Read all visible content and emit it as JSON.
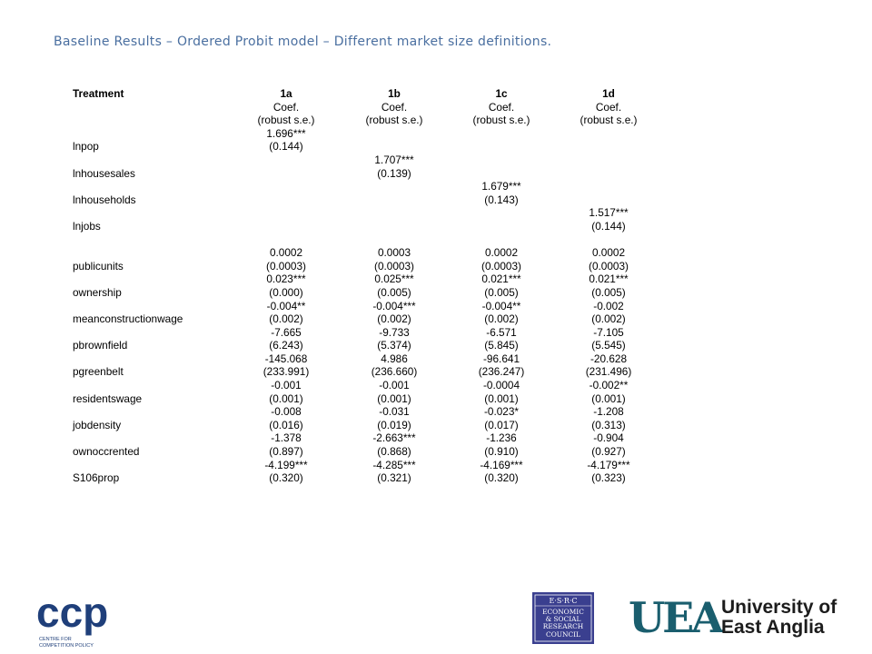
{
  "slide_title": "Baseline Results – Ordered Probit model – Different market size definitions.",
  "table": {
    "header": {
      "label": "Treatment",
      "models": [
        "1a",
        "1b",
        "1c",
        "1d"
      ]
    },
    "subheaders": [
      [
        "Coef.",
        "Coef.",
        "Coef.",
        "Coef."
      ],
      [
        "(robust s.e.)",
        "(robust s.e.)",
        "(robust s.e.)",
        "(robust s.e.)"
      ]
    ],
    "rows": [
      {
        "label": "",
        "values": [
          "1.696***",
          "",
          "",
          ""
        ]
      },
      {
        "label": "lnpop",
        "values": [
          "(0.144)",
          "",
          "",
          ""
        ]
      },
      {
        "label": "",
        "values": [
          "",
          "1.707***",
          "",
          ""
        ]
      },
      {
        "label": "lnhousesales",
        "values": [
          "",
          "(0.139)",
          "",
          ""
        ]
      },
      {
        "label": "",
        "values": [
          "",
          "",
          "1.679***",
          ""
        ]
      },
      {
        "label": "lnhouseholds",
        "values": [
          "",
          "",
          "(0.143)",
          ""
        ]
      },
      {
        "label": "",
        "values": [
          "",
          "",
          "",
          "1.517***"
        ]
      },
      {
        "label": "lnjobs",
        "values": [
          "",
          "",
          "",
          "(0.144)"
        ]
      },
      {
        "label": "",
        "values": [
          "",
          "",
          "",
          ""
        ]
      },
      {
        "label": "",
        "values": [
          "0.0002",
          "0.0003",
          "0.0002",
          "0.0002"
        ]
      },
      {
        "label": "publicunits",
        "values": [
          "(0.0003)",
          "(0.0003)",
          "(0.0003)",
          "(0.0003)"
        ]
      },
      {
        "label": "",
        "values": [
          "0.023***",
          "0.025***",
          "0.021***",
          "0.021***"
        ]
      },
      {
        "label": "ownership",
        "values": [
          "(0.000)",
          "(0.005)",
          "(0.005)",
          "(0.005)"
        ]
      },
      {
        "label": "",
        "values": [
          "-0.004**",
          "-0.004***",
          "-0.004**",
          "-0.002"
        ]
      },
      {
        "label": "meanconstructionwage",
        "values": [
          "(0.002)",
          "(0.002)",
          "(0.002)",
          "(0.002)"
        ]
      },
      {
        "label": "",
        "values": [
          "-7.665",
          "-9.733",
          "-6.571",
          "-7.105"
        ]
      },
      {
        "label": "pbrownfield",
        "values": [
          "(6.243)",
          "(5.374)",
          "(5.845)",
          "(5.545)"
        ]
      },
      {
        "label": "",
        "values": [
          "-145.068",
          "4.986",
          "-96.641",
          "-20.628"
        ]
      },
      {
        "label": "pgreenbelt",
        "values": [
          "(233.991)",
          "(236.660)",
          "(236.247)",
          "(231.496)"
        ]
      },
      {
        "label": "",
        "values": [
          "-0.001",
          "-0.001",
          "-0.0004",
          "-0.002**"
        ]
      },
      {
        "label": "residentswage",
        "values": [
          "(0.001)",
          "(0.001)",
          "(0.001)",
          "(0.001)"
        ]
      },
      {
        "label": "",
        "values": [
          "-0.008",
          "-0.031",
          "-0.023*",
          "-1.208"
        ]
      },
      {
        "label": "jobdensity",
        "values": [
          "(0.016)",
          "(0.019)",
          "(0.017)",
          "(0.313)"
        ]
      },
      {
        "label": "",
        "values": [
          "-1.378",
          "-2.663***",
          "-1.236",
          "-0.904"
        ]
      },
      {
        "label": "ownoccrented",
        "values": [
          "(0.897)",
          "(0.868)",
          "(0.910)",
          "(0.927)"
        ]
      },
      {
        "label": "",
        "values": [
          "-4.199***",
          "-4.285***",
          "-4.169***",
          "-4.179***"
        ]
      },
      {
        "label": "S106prop",
        "values": [
          "(0.320)",
          "(0.321)",
          "(0.320)",
          "(0.323)"
        ]
      }
    ]
  },
  "logos": {
    "ccp": {
      "text": "ccp",
      "subtext": [
        "CENTRE FOR",
        "COMPETITION POLICY"
      ],
      "color": "#1f3f7a"
    },
    "esrc": {
      "lines": [
        "E·S·R·C",
        "ECONOMIC",
        "& SOCIAL",
        "RESEARCH",
        "COUNCIL"
      ],
      "color": "#3a3f8f"
    },
    "uea": {
      "mark": "UEA",
      "lines": [
        "University of",
        "East Anglia"
      ],
      "mark_color": "#1a5e6e",
      "text_color": "#1c1c1c"
    }
  }
}
